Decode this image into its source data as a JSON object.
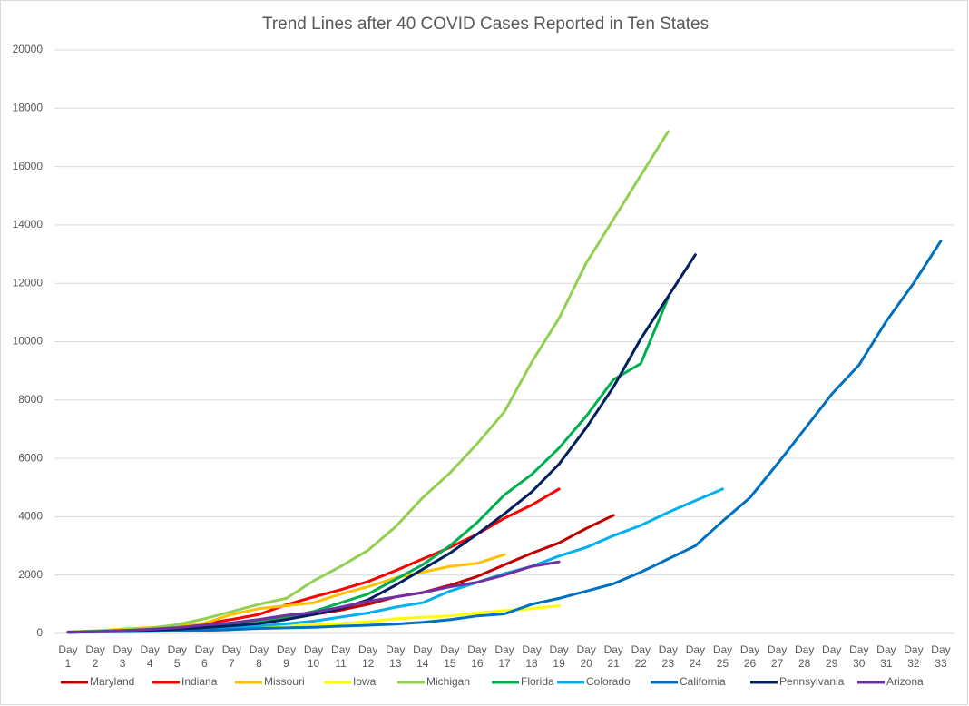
{
  "chart_data": {
    "type": "line",
    "title": "Trend Lines after 40 COVID Cases Reported in Ten States",
    "categories": [
      "Day 1",
      "Day 2",
      "Day 3",
      "Day 4",
      "Day 5",
      "Day 6",
      "Day 7",
      "Day 8",
      "Day 9",
      "Day 10",
      "Day 11",
      "Day 12",
      "Day 13",
      "Day 14",
      "Day 15",
      "Day 16",
      "Day 17",
      "Day 18",
      "Day 19",
      "Day 20",
      "Day 21",
      "Day 22",
      "Day 23",
      "Day 24",
      "Day 25",
      "Day 26",
      "Day 27",
      "Day 28",
      "Day 29",
      "Day 30",
      "Day 31",
      "Day 32",
      "Day 33"
    ],
    "ylim": [
      0,
      20000
    ],
    "yticks": [
      0,
      2000,
      4000,
      6000,
      8000,
      10000,
      12000,
      14000,
      16000,
      18000,
      20000
    ],
    "grid": true,
    "legend": "bottom",
    "series": [
      {
        "name": "Maryland",
        "color": "#c00000",
        "values": [
          40,
          60,
          90,
          110,
          150,
          200,
          280,
          380,
          500,
          650,
          800,
          1000,
          1250,
          1400,
          1650,
          1950,
          2350,
          2750,
          3100,
          3600,
          4050,
          null,
          null,
          null,
          null,
          null,
          null,
          null,
          null,
          null,
          null,
          null,
          null
        ]
      },
      {
        "name": "Indiana",
        "color": "#ff0000",
        "values": [
          40,
          80,
          120,
          170,
          260,
          330,
          480,
          650,
          980,
          1250,
          1500,
          1780,
          2150,
          2550,
          2950,
          3400,
          3950,
          4400,
          4950,
          null,
          null,
          null,
          null,
          null,
          null,
          null,
          null,
          null,
          null,
          null,
          null,
          null,
          null
        ]
      },
      {
        "name": "Missouri",
        "color": "#ffc000",
        "values": [
          50,
          90,
          150,
          200,
          250,
          350,
          650,
          850,
          950,
          1050,
          1350,
          1600,
          1900,
          2100,
          2300,
          2400,
          2700,
          null,
          null,
          null,
          null,
          null,
          null,
          null,
          null,
          null,
          null,
          null,
          null,
          null,
          null,
          null,
          null
        ]
      },
      {
        "name": "Iowa",
        "color": "#ffff00",
        "values": [
          40,
          50,
          70,
          90,
          110,
          140,
          170,
          200,
          240,
          300,
          340,
          400,
          500,
          550,
          600,
          700,
          780,
          850,
          950,
          null,
          null,
          null,
          null,
          null,
          null,
          null,
          null,
          null,
          null,
          null,
          null,
          null,
          null
        ]
      },
      {
        "name": "Michigan",
        "color": "#92d050",
        "values": [
          50,
          80,
          120,
          180,
          300,
          500,
          750,
          1000,
          1200,
          1800,
          2300,
          2850,
          3650,
          4650,
          5500,
          6500,
          7600,
          9300,
          10800,
          12700,
          14200,
          15700,
          17200,
          null,
          null,
          null,
          null,
          null,
          null,
          null,
          null,
          null,
          null
        ]
      },
      {
        "name": "Florida",
        "color": "#00b050",
        "values": [
          50,
          70,
          100,
          130,
          180,
          250,
          320,
          420,
          550,
          750,
          1050,
          1350,
          1850,
          2350,
          3000,
          3800,
          4750,
          5450,
          6350,
          7450,
          8700,
          9250,
          11500,
          null,
          null,
          null,
          null,
          null,
          null,
          null,
          null,
          null,
          null
        ]
      },
      {
        "name": "Colorado",
        "color": "#00b0f0",
        "values": [
          40,
          60,
          80,
          100,
          130,
          170,
          210,
          260,
          330,
          420,
          560,
          700,
          900,
          1050,
          1450,
          1750,
          2050,
          2300,
          2650,
          2950,
          3350,
          3700,
          4150,
          4550,
          4950,
          null,
          null,
          null,
          null,
          null,
          null,
          null,
          null
        ]
      },
      {
        "name": "California",
        "color": "#0070c0",
        "values": [
          40,
          50,
          60,
          70,
          80,
          100,
          130,
          170,
          190,
          210,
          250,
          280,
          320,
          380,
          470,
          600,
          670,
          1000,
          1200,
          1450,
          1700,
          2100,
          2550,
          3000,
          3850,
          4650,
          5800,
          7000,
          8200,
          9200,
          10700,
          12000,
          13450
        ]
      },
      {
        "name": "Pennsylvania",
        "color": "#002060",
        "values": [
          40,
          60,
          80,
          110,
          150,
          200,
          260,
          340,
          480,
          650,
          850,
          1150,
          1650,
          2200,
          2750,
          3400,
          4100,
          4850,
          5800,
          7050,
          8450,
          10100,
          11550,
          12980,
          null,
          null,
          null,
          null,
          null,
          null,
          null,
          null,
          null
        ]
      },
      {
        "name": "Arizona",
        "color": "#7030a0",
        "values": [
          40,
          60,
          90,
          140,
          200,
          290,
          360,
          480,
          620,
          720,
          900,
          1100,
          1250,
          1400,
          1600,
          1750,
          2000,
          2300,
          2450,
          null,
          null,
          null,
          null,
          null,
          null,
          null,
          null,
          null,
          null,
          null,
          null,
          null,
          null
        ]
      }
    ]
  }
}
